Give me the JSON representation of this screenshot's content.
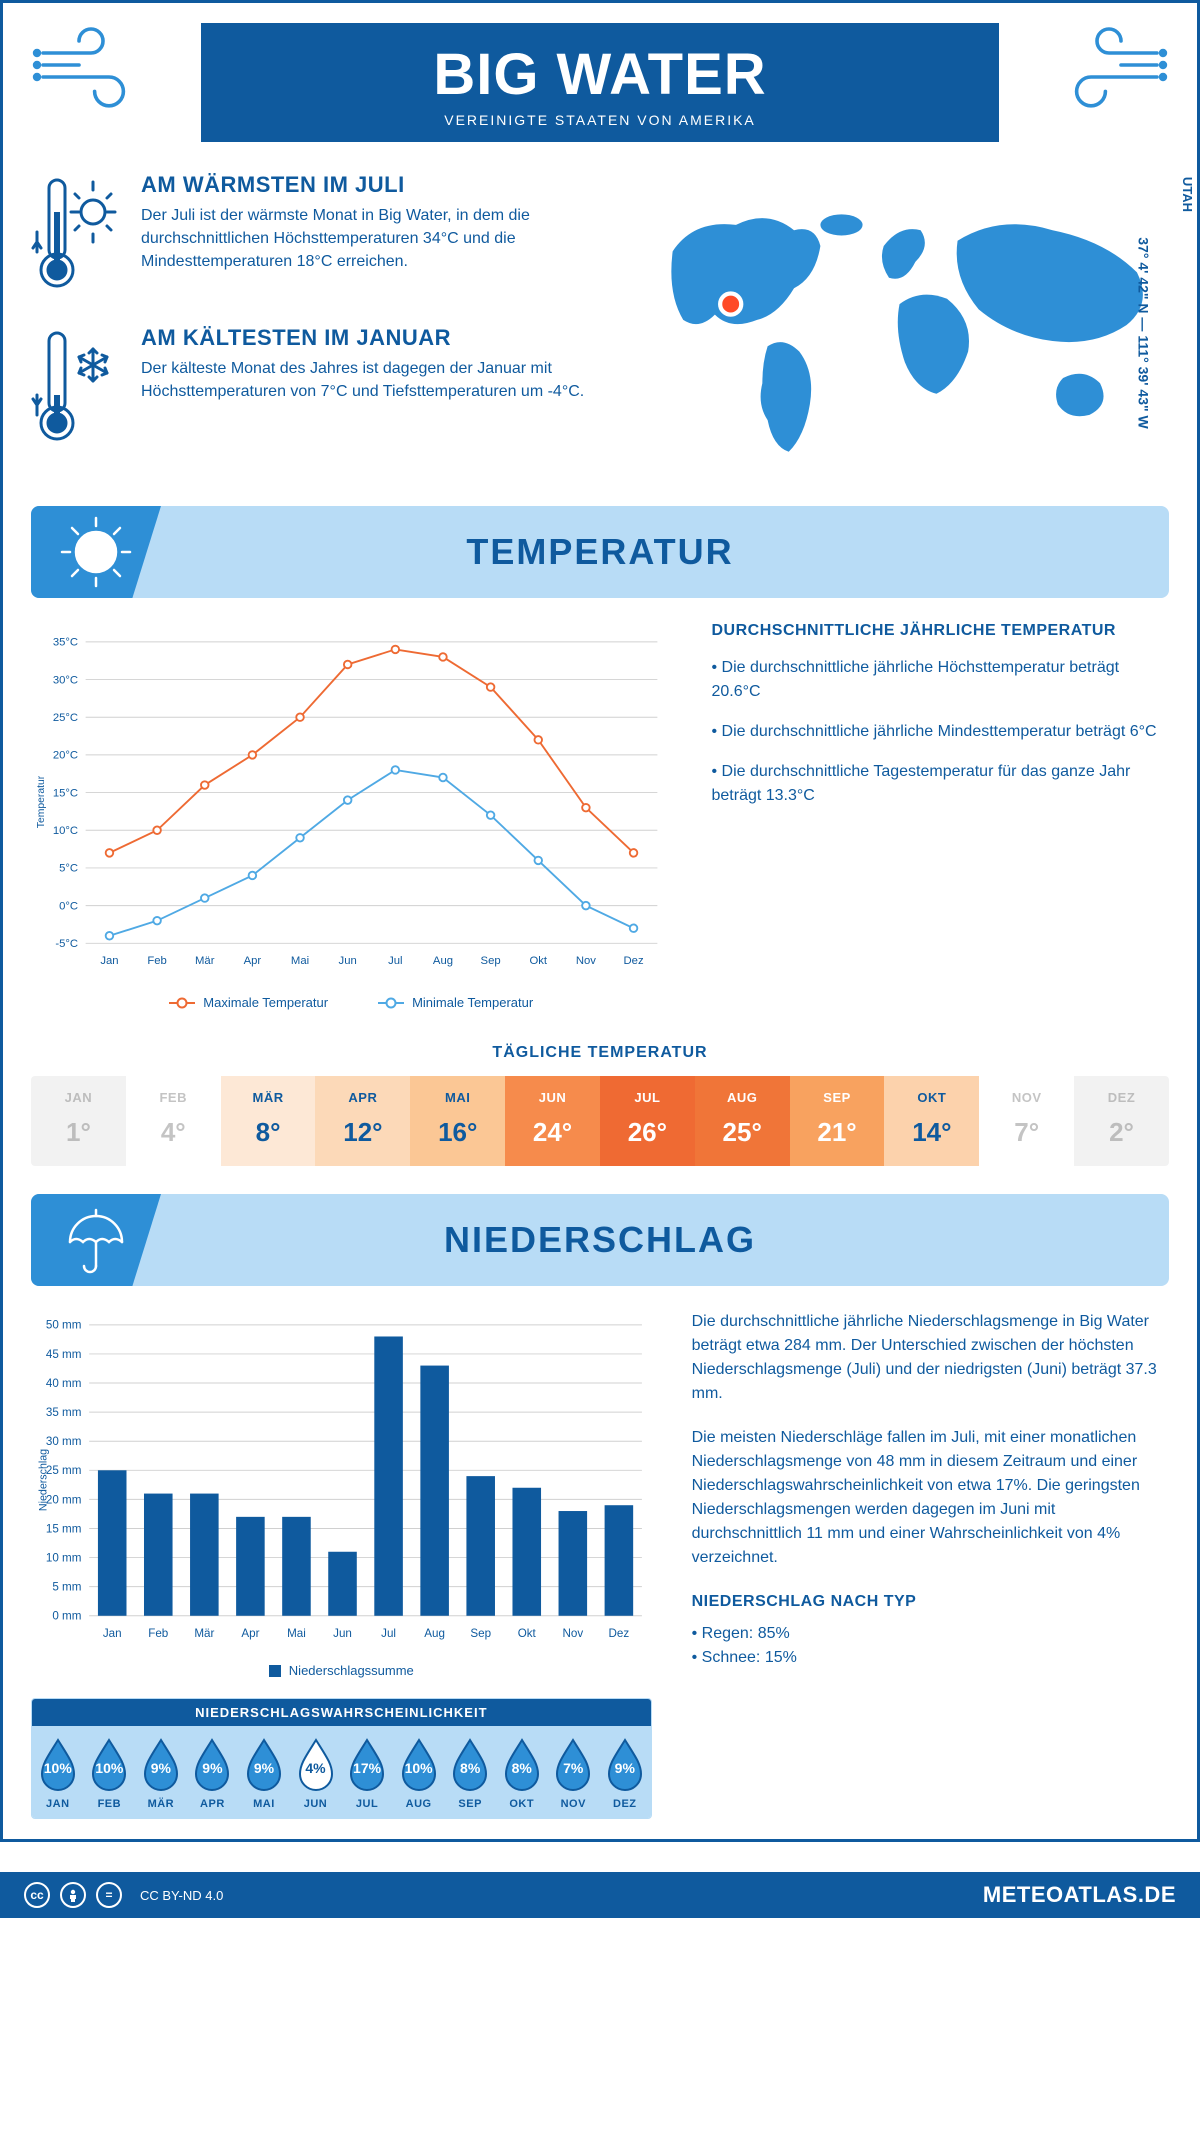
{
  "colors": {
    "brand": "#0f5a9e",
    "brand_light": "#2e8fd6",
    "banner_bg": "#b8dcf6",
    "accent_orange": "#ee6a33",
    "accent_blue": "#4fa9e4",
    "grid": "#d0d0d0",
    "marker_red": "#ff4a26"
  },
  "header": {
    "title": "BIG WATER",
    "subtitle": "VEREINIGTE STAATEN VON AMERIKA"
  },
  "location": {
    "state": "UTAH",
    "coords": "37° 4' 42\" N — 111° 39' 43\" W"
  },
  "facts": {
    "warm": {
      "title": "AM WÄRMSTEN IM JULI",
      "body": "Der Juli ist der wärmste Monat in Big Water, in dem die durchschnittlichen Höchsttemperaturen 34°C und die Mindesttemperaturen 18°C erreichen."
    },
    "cold": {
      "title": "AM KÄLTESTEN IM JANUAR",
      "body": "Der kälteste Monat des Jahres ist dagegen der Januar mit Höchsttemperaturen von 7°C und Tiefsttemperaturen um -4°C."
    }
  },
  "sections": {
    "temperature": "TEMPERATUR",
    "precipitation": "NIEDERSCHLAG"
  },
  "temp_chart": {
    "type": "line",
    "months": [
      "Jan",
      "Feb",
      "Mär",
      "Apr",
      "Mai",
      "Jun",
      "Jul",
      "Aug",
      "Sep",
      "Okt",
      "Nov",
      "Dez"
    ],
    "max_values": [
      7,
      10,
      16,
      20,
      25,
      32,
      34,
      33,
      29,
      22,
      13,
      7
    ],
    "min_values": [
      -4,
      -2,
      1,
      4,
      9,
      14,
      18,
      17,
      12,
      6,
      0,
      -3
    ],
    "max_color": "#ee6a33",
    "min_color": "#4fa9e4",
    "ylim": [
      -5,
      35
    ],
    "ytick_step": 5,
    "y_axis_label": "Temperatur",
    "legend_max": "Maximale Temperatur",
    "legend_min": "Minimale Temperatur",
    "grid_color": "#e0e0e0",
    "line_width": 2,
    "marker_radius": 4
  },
  "temp_summary": {
    "heading": "DURCHSCHNITTLICHE JÄHRLICHE TEMPERATUR",
    "bullets": [
      "• Die durchschnittliche jährliche Höchsttemperatur beträgt 20.6°C",
      "• Die durchschnittliche jährliche Mindesttemperatur beträgt 6°C",
      "• Die durchschnittliche Tagestemperatur für das ganze Jahr beträgt 13.3°C"
    ]
  },
  "daily": {
    "title": "TÄGLICHE TEMPERATUR",
    "months": [
      "JAN",
      "FEB",
      "MÄR",
      "APR",
      "MAI",
      "JUN",
      "JUL",
      "AUG",
      "SEP",
      "OKT",
      "NOV",
      "DEZ"
    ],
    "values": [
      "1°",
      "4°",
      "8°",
      "12°",
      "16°",
      "24°",
      "26°",
      "25°",
      "21°",
      "14°",
      "7°",
      "2°"
    ],
    "bg_colors": [
      "#f2f2f2",
      "#ffffff",
      "#fde8d6",
      "#fcd9b8",
      "#fbc795",
      "#f68b4c",
      "#ef6a33",
      "#f07538",
      "#f8a25f",
      "#fcd2ac",
      "#ffffff",
      "#f2f2f2"
    ],
    "text_colors": [
      "#bdbdbd",
      "#c4c4c4",
      "#0f5a9e",
      "#0f5a9e",
      "#0f5a9e",
      "#ffffff",
      "#ffffff",
      "#ffffff",
      "#ffffff",
      "#0f5a9e",
      "#c4c4c4",
      "#bdbdbd"
    ]
  },
  "precip_chart": {
    "type": "bar",
    "months": [
      "Jan",
      "Feb",
      "Mär",
      "Apr",
      "Mai",
      "Jun",
      "Jul",
      "Aug",
      "Sep",
      "Okt",
      "Nov",
      "Dez"
    ],
    "values": [
      25,
      21,
      21,
      17,
      17,
      11,
      48,
      43,
      24,
      22,
      18,
      19
    ],
    "bar_color": "#0f5a9e",
    "ylim": [
      0,
      50
    ],
    "ytick_step": 5,
    "y_axis_label": "Niederschlag",
    "y_unit": "mm",
    "legend": "Niederschlagssumme",
    "bar_width_ratio": 0.62
  },
  "precip_text": {
    "p1": "Die durchschnittliche jährliche Niederschlagsmenge in Big Water beträgt etwa 284 mm. Der Unterschied zwischen der höchsten Niederschlagsmenge (Juli) und der niedrigsten (Juni) beträgt 37.3 mm.",
    "p2": "Die meisten Niederschläge fallen im Juli, mit einer monatlichen Niederschlagsmenge von 48 mm in diesem Zeitraum und einer Niederschlagswahrscheinlichkeit von etwa 17%. Die geringsten Niederschlagsmengen werden dagegen im Juni mit durchschnittlich 11 mm und einer Wahrscheinlichkeit von 4% verzeichnet.",
    "type_heading": "NIEDERSCHLAG NACH TYP",
    "type_rain": "• Regen: 85%",
    "type_snow": "• Schnee: 15%"
  },
  "precip_prob": {
    "title": "NIEDERSCHLAGSWAHRSCHEINLICHKEIT",
    "months": [
      "JAN",
      "FEB",
      "MÄR",
      "APR",
      "MAI",
      "JUN",
      "JUL",
      "AUG",
      "SEP",
      "OKT",
      "NOV",
      "DEZ"
    ],
    "values": [
      "10%",
      "10%",
      "9%",
      "9%",
      "9%",
      "4%",
      "17%",
      "10%",
      "8%",
      "8%",
      "7%",
      "9%"
    ],
    "min_index": 5,
    "drop_fill": "#2e8fd6",
    "drop_outline": "#0f5a9e",
    "drop_min_fill": "#ffffff"
  },
  "footer": {
    "license": "CC BY-ND 4.0",
    "site": "METEOATLAS.DE"
  }
}
